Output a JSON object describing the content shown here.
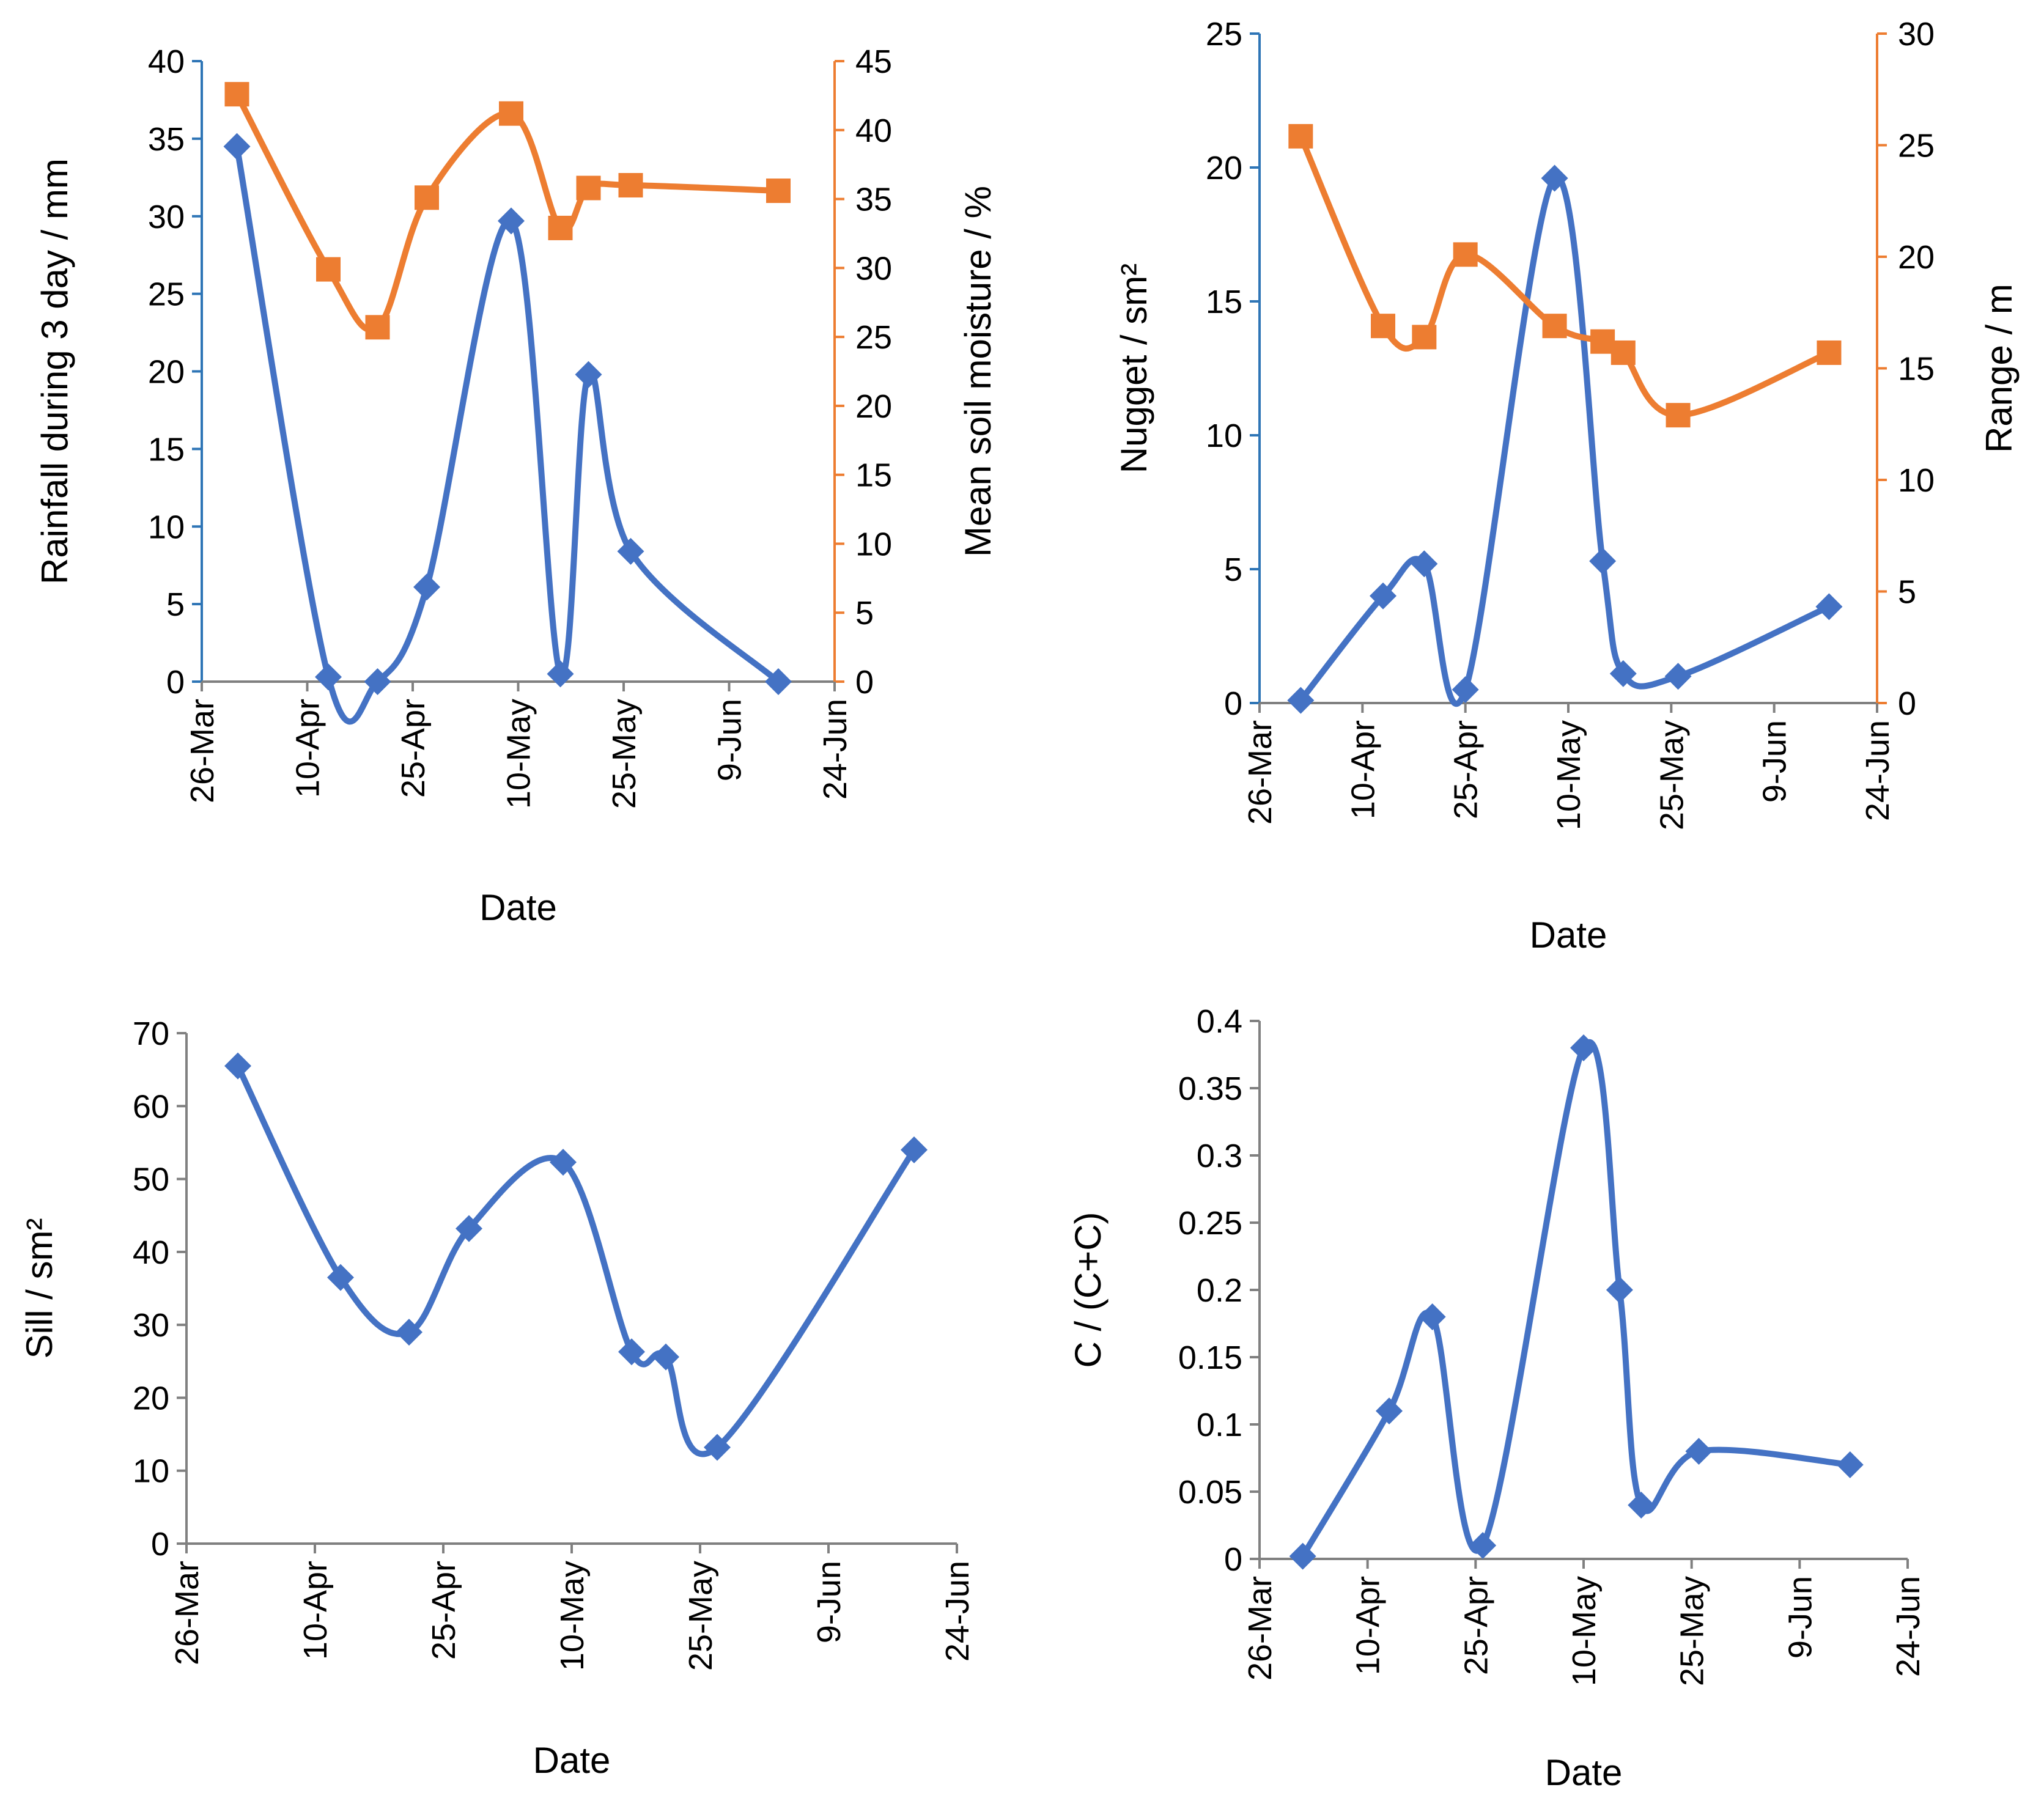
{
  "colors": {
    "blue": "#4472c4",
    "orange": "#ed7d31",
    "axis_blue": "#2e75b6",
    "axis_orange": "#ed7d31",
    "axis_gray": "#808080"
  },
  "chart_data": [
    {
      "type": "line",
      "xlabel": "Date",
      "ylabel_left": "Rainfall during 3 day / mm",
      "ylabel_right": "Mean soil moisture / %",
      "xticks": [
        "26-Mar",
        "10-Apr",
        "25-Apr",
        "10-May",
        "25-May",
        "9-Jun",
        "24-Jun"
      ],
      "xlim": [
        "26-Mar",
        "24-Jun"
      ],
      "ylim_left": [
        0,
        40
      ],
      "yticks_left": [
        "0",
        "5",
        "10",
        "15",
        "20",
        "25",
        "30",
        "35",
        "40"
      ],
      "ylim_right": [
        0,
        45
      ],
      "yticks_right": [
        "0",
        "5",
        "10",
        "15",
        "20",
        "25",
        "30",
        "35",
        "40",
        "45"
      ],
      "series": [
        {
          "axis": "left",
          "marker": "diamond",
          "x": [
            "31-Mar",
            "13-Apr",
            "20-Apr",
            "27-Apr",
            "9-May",
            "16-May",
            "20-May",
            "26-May",
            "16-Jun"
          ],
          "y": [
            34.5,
            0.3,
            0.0,
            6.1,
            29.7,
            0.5,
            19.8,
            8.4,
            0.0
          ]
        },
        {
          "axis": "right",
          "marker": "square",
          "x": [
            "31-Mar",
            "13-Apr",
            "20-Apr",
            "27-Apr",
            "9-May",
            "16-May",
            "20-May",
            "26-May",
            "16-Jun"
          ],
          "y": [
            42.6,
            29.9,
            25.7,
            35.1,
            41.2,
            32.9,
            35.8,
            36.0,
            35.6
          ]
        }
      ]
    },
    {
      "type": "line",
      "xlabel": "Date",
      "ylabel_left": "Nugget / sm²",
      "ylabel_right": "Range / m",
      "xticks": [
        "26-Mar",
        "10-Apr",
        "25-Apr",
        "10-May",
        "25-May",
        "9-Jun",
        "24-Jun"
      ],
      "xlim": [
        "26-Mar",
        "24-Jun"
      ],
      "ylim_left": [
        0,
        25
      ],
      "yticks_left": [
        "0",
        "5",
        "10",
        "15",
        "20",
        "25"
      ],
      "ylim_right": [
        0,
        30
      ],
      "yticks_right": [
        "0",
        "5",
        "10",
        "15",
        "20",
        "25",
        "30"
      ],
      "series": [
        {
          "axis": "left",
          "marker": "diamond",
          "x": [
            "1-Apr",
            "13-Apr",
            "19-Apr",
            "25-Apr",
            "8-May",
            "15-May",
            "18-May",
            "26-May",
            "17-Jun"
          ],
          "y": [
            0.1,
            4.0,
            5.2,
            0.5,
            19.6,
            5.3,
            1.1,
            1.0,
            3.6
          ]
        },
        {
          "axis": "right",
          "marker": "square",
          "x": [
            "1-Apr",
            "13-Apr",
            "19-Apr",
            "25-Apr",
            "8-May",
            "15-May",
            "18-May",
            "26-May",
            "17-Jun"
          ],
          "y": [
            25.4,
            16.9,
            16.4,
            20.1,
            16.9,
            16.2,
            15.7,
            12.9,
            15.7
          ]
        }
      ]
    },
    {
      "type": "line",
      "xlabel": "Date",
      "ylabel_left": "Sill / sm²",
      "xticks": [
        "26-Mar",
        "10-Apr",
        "25-Apr",
        "10-May",
        "25-May",
        "9-Jun",
        "24-Jun"
      ],
      "xlim": [
        "26-Mar",
        "24-Jun"
      ],
      "ylim_left": [
        0,
        70
      ],
      "yticks_left": [
        "0",
        "10",
        "20",
        "30",
        "40",
        "50",
        "60",
        "70"
      ],
      "series": [
        {
          "axis": "left",
          "marker": "diamond",
          "x": [
            "1-Apr",
            "13-Apr",
            "21-Apr",
            "28-Apr",
            "9-May",
            "17-May",
            "21-May",
            "27-May",
            "19-Jun"
          ],
          "y": [
            65.5,
            36.5,
            29.0,
            43.2,
            52.3,
            26.3,
            25.6,
            13.2,
            54.0
          ]
        }
      ]
    },
    {
      "type": "line",
      "xlabel": "Date",
      "ylabel_left": "C / (C+C)",
      "xticks": [
        "26-Mar",
        "10-Apr",
        "25-Apr",
        "10-May",
        "25-May",
        "9-Jun",
        "24-Jun"
      ],
      "xlim": [
        "26-Mar",
        "24-Jun"
      ],
      "ylim_left": [
        0,
        0.4
      ],
      "yticks_left": [
        "0",
        "0.05",
        "0.1",
        "0.15",
        "0.2",
        "0.25",
        "0.3",
        "0.35",
        "0.4"
      ],
      "series": [
        {
          "axis": "left",
          "marker": "diamond",
          "x": [
            "1-Apr",
            "13-Apr",
            "19-Apr",
            "26-Apr",
            "10-May",
            "15-May",
            "18-May",
            "26-May",
            "16-Jun"
          ],
          "y": [
            0.002,
            0.11,
            0.18,
            0.01,
            0.38,
            0.2,
            0.04,
            0.08,
            0.07
          ]
        }
      ]
    }
  ]
}
